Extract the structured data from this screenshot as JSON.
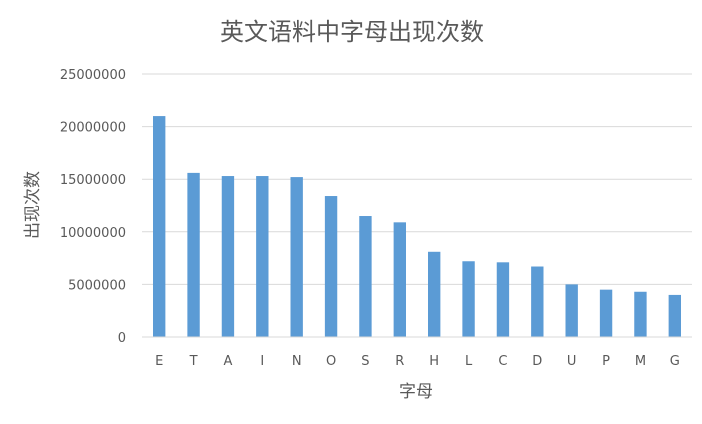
{
  "chart_data": {
    "type": "bar",
    "title": "英文语料中字母出现次数",
    "xlabel": "字母",
    "ylabel": "出现次数",
    "categories": [
      "E",
      "T",
      "A",
      "I",
      "N",
      "O",
      "S",
      "R",
      "H",
      "L",
      "C",
      "D",
      "U",
      "P",
      "M",
      "G"
    ],
    "values": [
      21000000,
      15600000,
      15300000,
      15300000,
      15200000,
      13400000,
      11500000,
      10900000,
      8100000,
      7200000,
      7100000,
      6700000,
      5000000,
      4500000,
      4300000,
      4000000
    ],
    "ylim": [
      0,
      25000000
    ],
    "yticks": [
      "0",
      "5000000",
      "10000000",
      "15000000",
      "20000000",
      "25000000"
    ],
    "grid": true,
    "legend": "none",
    "colors": {
      "bar": "#5B9BD5",
      "grid": "#D9D9D9",
      "text": "#595959"
    }
  }
}
